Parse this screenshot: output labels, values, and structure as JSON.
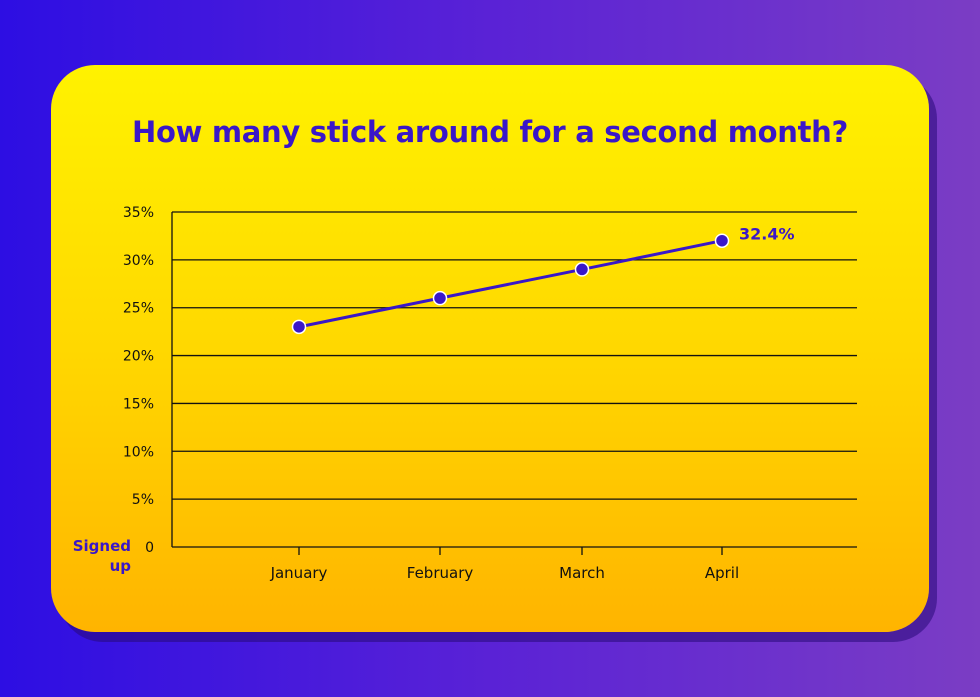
{
  "chart_data": {
    "type": "line",
    "title": "How many stick around for a second month?",
    "ylabel_lines": [
      "Signed",
      "up"
    ],
    "categories": [
      "January",
      "February",
      "March",
      "April"
    ],
    "series": [
      {
        "values": [
          23,
          26,
          29,
          32
        ]
      }
    ],
    "data_labels": [
      {
        "index": 3,
        "text": "32.4%"
      }
    ],
    "yticks": [
      {
        "value": 0,
        "label": "0"
      },
      {
        "value": 5,
        "label": "5%"
      },
      {
        "value": 10,
        "label": "10%"
      },
      {
        "value": 15,
        "label": "15%"
      },
      {
        "value": 20,
        "label": "20%"
      },
      {
        "value": 25,
        "label": "25%"
      },
      {
        "value": 30,
        "label": "30%"
      },
      {
        "value": 35,
        "label": "35%"
      }
    ],
    "ylim": [
      0,
      35
    ],
    "grid": true,
    "colors": {
      "line": "#3a17c8",
      "grid": "#111111",
      "title": "#3a17c8"
    }
  }
}
